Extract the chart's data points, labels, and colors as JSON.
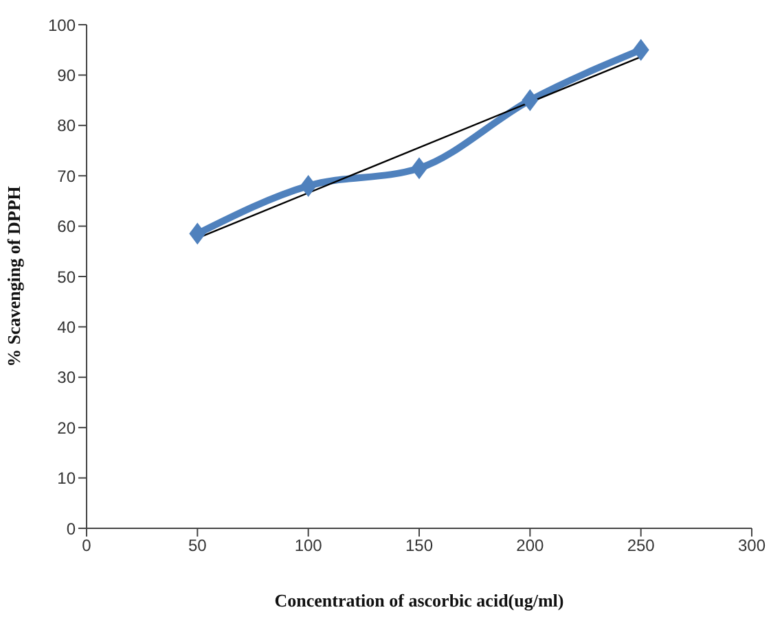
{
  "chart_data": {
    "type": "line",
    "xlabel": "Concentration of ascorbic acid(ug/ml)",
    "ylabel": "% Scavenging of DPPH",
    "x": [
      50,
      100,
      150,
      200,
      250
    ],
    "series": [
      {
        "color": "#4f81bd",
        "values": [
          58.5,
          68,
          71.5,
          85,
          95
        ],
        "marker": "diamond"
      },
      {
        "type": "line",
        "color": "#000000",
        "x": [
          50,
          250
        ],
        "values": [
          57.6,
          93.6
        ],
        "marker": "none"
      }
    ],
    "xlim": [
      0,
      300
    ],
    "xticks": [
      0,
      50,
      100,
      150,
      200,
      250,
      300
    ],
    "ylim": [
      0,
      100
    ],
    "yticks": [
      0,
      10,
      20,
      30,
      40,
      50,
      60,
      70,
      80,
      90,
      100
    ]
  }
}
